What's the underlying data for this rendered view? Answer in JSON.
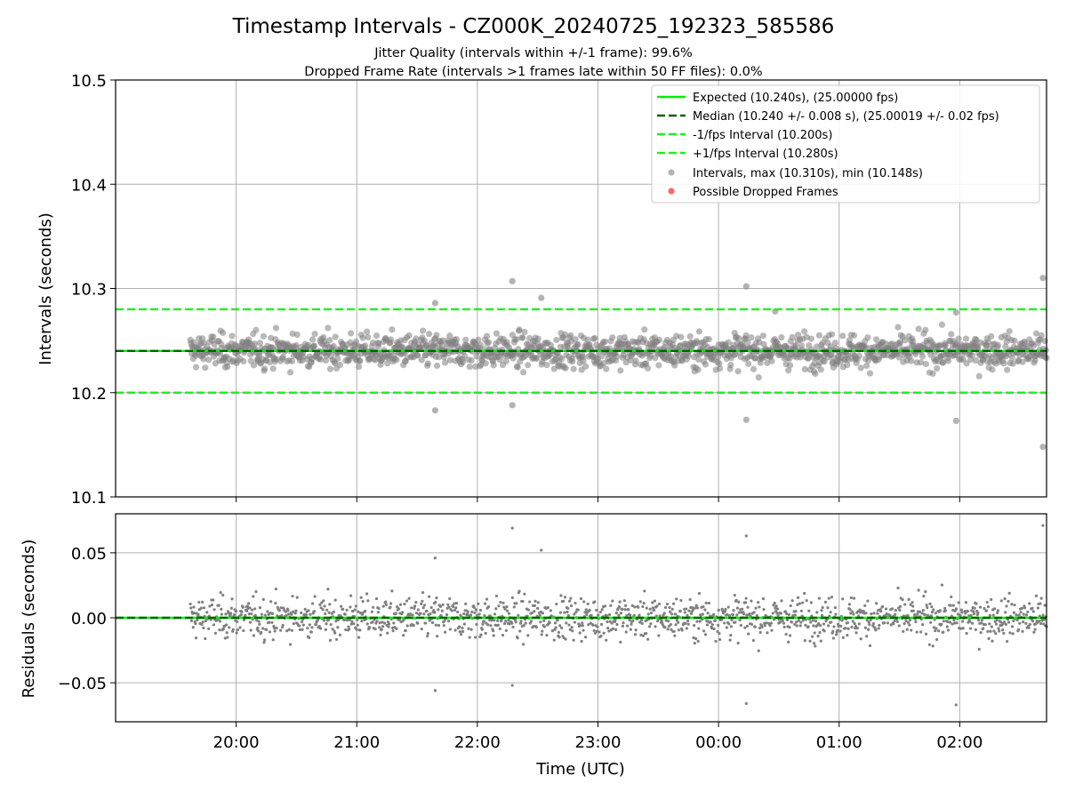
{
  "chart_data": {
    "title": "Timestamp Intervals - CZ000K_20240725_192323_585586",
    "subtitle_lines": [
      "Jitter Quality (intervals within +/-1 frame): 99.6%",
      "Dropped Frame Rate (intervals >1 frames late within 50 FF files): 0.0%"
    ],
    "xlabel": "Time (UTC)",
    "x_range_hours": [
      19.0,
      26.72
    ],
    "x_ticks": [
      {
        "label": "20:00",
        "hour": 20
      },
      {
        "label": "21:00",
        "hour": 21
      },
      {
        "label": "22:00",
        "hour": 22
      },
      {
        "label": "23:00",
        "hour": 23
      },
      {
        "label": "00:00",
        "hour": 24
      },
      {
        "label": "01:00",
        "hour": 25
      },
      {
        "label": "02:00",
        "hour": 26
      }
    ],
    "data_start_hour": 19.62,
    "grid": true,
    "colors": {
      "expected": "#00ee00",
      "median": "#006400",
      "interval_lines": "#22ee22",
      "points": "#808080",
      "dropped": "#ff4d4d"
    },
    "panels": [
      {
        "type": "scatter",
        "ylabel": "Intervals (seconds)",
        "ylim": [
          10.1,
          10.5
        ],
        "y_ticks": [
          "10.1",
          "10.2",
          "10.3",
          "10.4",
          "10.5"
        ],
        "reference_lines": {
          "expected": 10.24,
          "median": 10.24,
          "minus_1_fps": 10.2,
          "plus_1_fps": 10.28
        },
        "legend_position": "upper right",
        "legend": [
          {
            "label": "Expected (10.240s), (25.00000 fps)",
            "kind": "expected"
          },
          {
            "label": "Median (10.240 +/- 0.008 s), (25.00019 +/- 0.02 fps)",
            "kind": "median"
          },
          {
            "label": "-1/fps Interval (10.200s)",
            "kind": "interval"
          },
          {
            "label": "+1/fps Interval (10.280s)",
            "kind": "interval"
          },
          {
            "label": "Intervals, max (10.310s), min (10.148s)",
            "kind": "points"
          },
          {
            "label": "Possible Dropped Frames",
            "kind": "dropped"
          }
        ],
        "outliers": [
          {
            "hour": 21.65,
            "value": 10.183
          },
          {
            "hour": 21.65,
            "value": 10.286
          },
          {
            "hour": 22.29,
            "value": 10.188
          },
          {
            "hour": 22.29,
            "value": 10.307
          },
          {
            "hour": 22.53,
            "value": 10.291
          },
          {
            "hour": 24.23,
            "value": 10.174
          },
          {
            "hour": 24.23,
            "value": 10.302
          },
          {
            "hour": 24.47,
            "value": 10.278
          },
          {
            "hour": 25.97,
            "value": 10.173
          },
          {
            "hour": 25.97,
            "value": 10.277
          },
          {
            "hour": 26.69,
            "value": 10.148
          },
          {
            "hour": 26.69,
            "value": 10.31
          }
        ]
      },
      {
        "type": "scatter",
        "ylabel": "Residuals (seconds)",
        "ylim": [
          -0.08,
          0.08
        ],
        "y_ticks": [
          "−0.05",
          "0.00",
          "0.05"
        ],
        "y_tick_values": [
          -0.05,
          0.0,
          0.05
        ],
        "reference_lines": {
          "expected": 0.0,
          "median": 0.0
        },
        "outliers": [
          {
            "hour": 21.65,
            "value": -0.056
          },
          {
            "hour": 21.65,
            "value": 0.046
          },
          {
            "hour": 22.29,
            "value": -0.052
          },
          {
            "hour": 22.29,
            "value": 0.069
          },
          {
            "hour": 22.53,
            "value": 0.052
          },
          {
            "hour": 24.23,
            "value": -0.066
          },
          {
            "hour": 24.23,
            "value": 0.063
          },
          {
            "hour": 25.97,
            "value": -0.067
          },
          {
            "hour": 26.69,
            "value": 0.071
          }
        ]
      }
    ],
    "bulk_scatter": {
      "center": 10.24,
      "typical_spread": 0.008,
      "n_points": 1500
    }
  }
}
